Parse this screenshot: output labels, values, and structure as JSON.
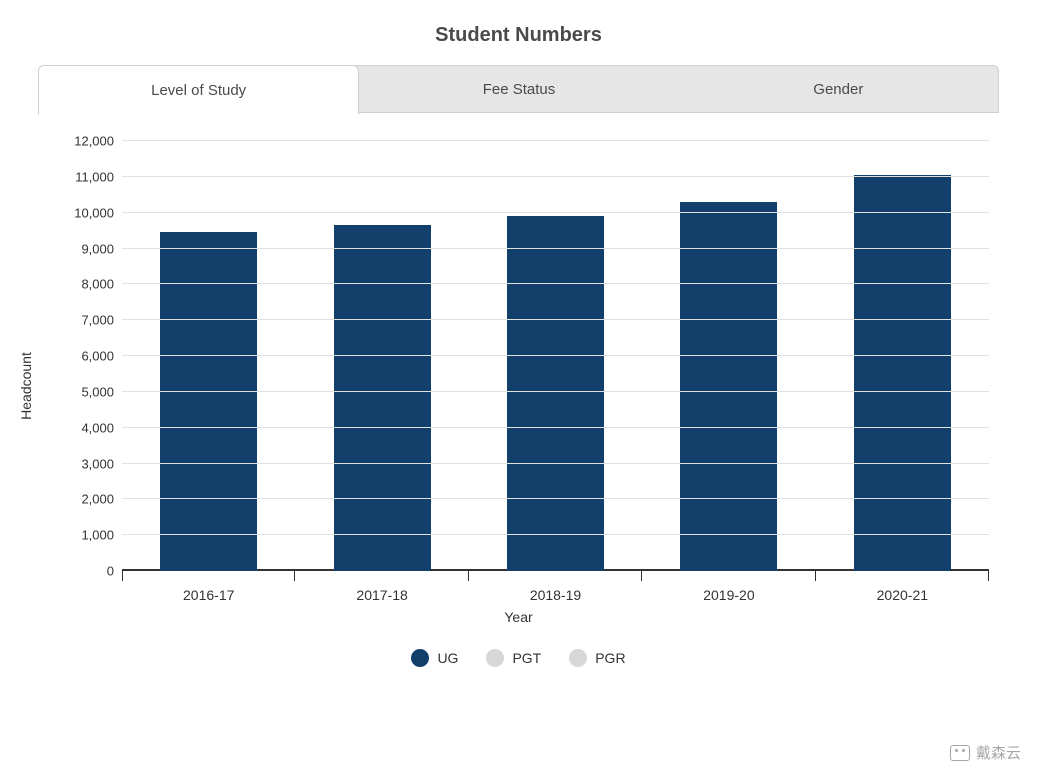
{
  "title": "Student Numbers",
  "tabs": [
    {
      "label": "Level of Study",
      "active": true
    },
    {
      "label": "Fee Status",
      "active": false
    },
    {
      "label": "Gender",
      "active": false
    }
  ],
  "chart": {
    "type": "bar",
    "ylabel": "Headcount",
    "xlabel": "Year",
    "ylim": [
      0,
      12000
    ],
    "ytick_step": 1000,
    "ytick_labels": [
      "0",
      "1,000",
      "2,000",
      "3,000",
      "4,000",
      "5,000",
      "6,000",
      "7,000",
      "8,000",
      "9,000",
      "10,000",
      "11,000",
      "12,000"
    ],
    "categories": [
      "2016-17",
      "2017-18",
      "2018-19",
      "2019-20",
      "2020-21"
    ],
    "values": [
      9450,
      9650,
      9900,
      10300,
      11050
    ],
    "bar_color": "#12406b",
    "grid_color": "#e1e1e1",
    "baseline_color": "#333333",
    "background_color": "#ffffff",
    "bar_width": 0.56,
    "title_fontsize": 20,
    "label_fontsize": 14,
    "tick_fontsize": 13
  },
  "legend": [
    {
      "label": "UG",
      "color": "#12406b",
      "active": true
    },
    {
      "label": "PGT",
      "color": "#d7d7d7",
      "active": false
    },
    {
      "label": "PGR",
      "color": "#d7d7d7",
      "active": false
    }
  ],
  "watermark": {
    "text": "戴森云"
  }
}
